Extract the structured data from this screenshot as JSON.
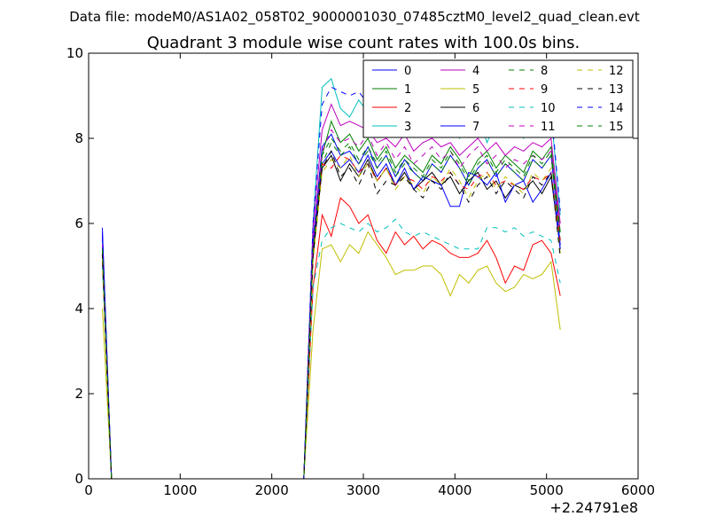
{
  "chart_data": {
    "type": "line",
    "header": "Data file: modeM0/AS1A02_058T02_9000001030_07485cztM0_level2_quad_clean.evt",
    "title": "Quadrant 3 module wise count rates with 100.0s bins.",
    "xlabel": "",
    "ylabel": "",
    "xlim": [
      0,
      6000
    ],
    "ylim": [
      0,
      10
    ],
    "x_ticks": [
      0,
      1000,
      2000,
      3000,
      4000,
      5000,
      6000
    ],
    "y_ticks": [
      0,
      2,
      4,
      6,
      8,
      10
    ],
    "x_offset_label": "+2.24791e8",
    "grid": false,
    "legend_position": "top-right",
    "legend_columns": 4,
    "x": [
      150,
      250,
      2350,
      2450,
      2550,
      2650,
      2750,
      2850,
      2950,
      3050,
      3150,
      3250,
      3350,
      3450,
      3550,
      3650,
      3750,
      3850,
      3950,
      4050,
      4150,
      4250,
      4350,
      4450,
      4550,
      4650,
      4750,
      4850,
      4950,
      5050,
      5150
    ],
    "series": [
      {
        "name": "0",
        "color": "#0000ff",
        "dash": "solid",
        "values": [
          5.9,
          0,
          0,
          5.6,
          7.8,
          8.1,
          7.6,
          7.7,
          7.4,
          7.8,
          7.3,
          7.6,
          7.1,
          7.5,
          7.2,
          7.0,
          7.4,
          7.2,
          7.6,
          7.3,
          6.9,
          7.3,
          7.5,
          7.1,
          7.4,
          7.2,
          7.0,
          7.5,
          7.3,
          7.6,
          5.5
        ]
      },
      {
        "name": "1",
        "color": "#008000",
        "dash": "solid",
        "values": [
          5.5,
          0,
          0,
          5.4,
          7.6,
          8.4,
          7.9,
          8.1,
          7.7,
          8.0,
          7.5,
          7.8,
          7.3,
          7.6,
          7.4,
          7.2,
          7.6,
          7.4,
          7.8,
          7.5,
          7.1,
          7.5,
          7.7,
          7.3,
          7.6,
          7.4,
          7.2,
          7.7,
          7.5,
          7.8,
          5.8
        ]
      },
      {
        "name": "2",
        "color": "#ff0000",
        "dash": "solid",
        "values": [
          5.2,
          0,
          0,
          4.5,
          6.2,
          5.7,
          6.6,
          6.4,
          6.0,
          6.2,
          5.6,
          5.3,
          5.8,
          5.5,
          5.7,
          5.4,
          5.6,
          5.5,
          5.3,
          5.2,
          5.2,
          5.3,
          5.6,
          5.2,
          4.6,
          5.0,
          4.9,
          5.5,
          5.6,
          5.3,
          4.3
        ]
      },
      {
        "name": "3",
        "color": "#00bfbf",
        "dash": "solid",
        "values": [
          5.6,
          0,
          0,
          6.0,
          9.2,
          9.4,
          8.7,
          8.5,
          8.9,
          8.6,
          8.2,
          8.8,
          8.3,
          8.6,
          8.1,
          8.4,
          8.7,
          8.2,
          8.5,
          8.0,
          8.3,
          8.6,
          7.9,
          8.4,
          8.2,
          8.5,
          8.0,
          8.4,
          8.3,
          8.6,
          6.2
        ]
      },
      {
        "name": "4",
        "color": "#bf00bf",
        "dash": "solid",
        "values": [
          5.7,
          0,
          0,
          5.9,
          8.2,
          8.8,
          8.3,
          8.4,
          8.3,
          8.2,
          7.9,
          8.0,
          7.8,
          8.1,
          7.7,
          7.9,
          8.0,
          7.8,
          7.9,
          7.6,
          7.8,
          8.0,
          7.7,
          7.9,
          7.6,
          7.8,
          7.7,
          7.9,
          7.8,
          8.0,
          6.0
        ]
      },
      {
        "name": "5",
        "color": "#bfbf00",
        "dash": "solid",
        "values": [
          4.0,
          0,
          0,
          3.5,
          5.4,
          5.5,
          5.1,
          5.5,
          5.3,
          5.8,
          5.5,
          5.2,
          4.8,
          4.9,
          4.9,
          5.0,
          5.0,
          4.8,
          4.3,
          4.8,
          4.6,
          4.9,
          5.0,
          4.6,
          4.4,
          4.5,
          4.8,
          4.7,
          4.8,
          5.1,
          3.5
        ]
      },
      {
        "name": "6",
        "color": "#000000",
        "dash": "solid",
        "values": [
          5.3,
          0,
          0,
          5.3,
          7.3,
          7.6,
          7.0,
          7.4,
          7.1,
          7.5,
          7.0,
          7.3,
          6.9,
          7.2,
          6.8,
          7.0,
          7.2,
          6.9,
          7.1,
          6.7,
          7.0,
          7.2,
          6.8,
          7.0,
          6.6,
          6.9,
          6.8,
          7.0,
          6.7,
          7.1,
          5.4
        ]
      },
      {
        "name": "7",
        "color": "#0000ff",
        "dash": "solid",
        "values": [
          5.8,
          0,
          0,
          5.5,
          7.4,
          7.7,
          7.3,
          7.5,
          7.2,
          7.6,
          7.1,
          7.4,
          6.9,
          7.3,
          6.8,
          7.1,
          7.0,
          6.9,
          6.4,
          6.4,
          7.2,
          7.1,
          6.9,
          7.2,
          6.5,
          6.9,
          7.0,
          6.5,
          6.8,
          7.2,
          5.4
        ]
      },
      {
        "name": "8",
        "color": "#008000",
        "dash": "dashed",
        "values": [
          5.4,
          0,
          0,
          5.3,
          7.4,
          7.9,
          7.6,
          7.8,
          7.4,
          7.7,
          7.3,
          7.6,
          7.1,
          7.4,
          7.2,
          7.0,
          7.4,
          7.2,
          7.6,
          7.3,
          6.9,
          7.3,
          7.5,
          7.1,
          7.4,
          7.2,
          7.0,
          7.5,
          7.3,
          7.6,
          5.6
        ]
      },
      {
        "name": "9",
        "color": "#ff0000",
        "dash": "dashed",
        "values": [
          5.1,
          0,
          0,
          5.2,
          7.4,
          7.3,
          7.6,
          7.5,
          7.2,
          7.4,
          7.0,
          7.3,
          6.9,
          7.1,
          7.0,
          6.8,
          7.1,
          7.0,
          7.2,
          6.9,
          6.8,
          7.1,
          7.2,
          6.9,
          7.0,
          6.9,
          6.8,
          7.1,
          7.0,
          7.2,
          5.6
        ]
      },
      {
        "name": "10",
        "color": "#00bfbf",
        "dash": "dashed",
        "values": [
          5.0,
          0,
          0,
          4.5,
          5.6,
          5.9,
          6.0,
          5.9,
          5.8,
          6.0,
          5.8,
          5.9,
          6.1,
          5.8,
          5.7,
          5.8,
          5.7,
          5.6,
          5.5,
          5.4,
          5.4,
          5.4,
          5.9,
          5.9,
          5.8,
          5.9,
          5.7,
          5.8,
          5.7,
          5.6,
          4.6
        ]
      },
      {
        "name": "11",
        "color": "#bf00bf",
        "dash": "dashed",
        "values": [
          5.5,
          0,
          0,
          5.6,
          7.7,
          8.2,
          7.9,
          8.0,
          7.8,
          8.1,
          7.6,
          7.9,
          7.5,
          7.8,
          7.4,
          7.6,
          7.8,
          7.5,
          7.7,
          7.3,
          7.6,
          7.8,
          7.4,
          7.6,
          7.3,
          7.5,
          7.4,
          7.6,
          7.5,
          7.7,
          5.8
        ]
      },
      {
        "name": "12",
        "color": "#bfbf00",
        "dash": "dashed",
        "values": [
          5.2,
          0,
          0,
          5.1,
          7.2,
          7.5,
          7.3,
          7.6,
          7.1,
          7.4,
          7.0,
          7.3,
          6.8,
          7.1,
          6.9,
          6.7,
          7.1,
          6.9,
          7.3,
          7.0,
          6.6,
          7.0,
          7.2,
          6.8,
          7.1,
          6.9,
          6.7,
          7.2,
          7.0,
          7.3,
          5.3
        ]
      },
      {
        "name": "13",
        "color": "#000000",
        "dash": "dashed",
        "values": [
          5.3,
          0,
          0,
          5.2,
          7.3,
          7.7,
          7.1,
          7.3,
          6.9,
          7.4,
          6.7,
          7.0,
          6.9,
          7.1,
          6.8,
          6.6,
          7.0,
          6.8,
          7.2,
          6.9,
          6.5,
          6.9,
          7.1,
          6.7,
          7.0,
          6.8,
          6.6,
          7.1,
          6.9,
          7.2,
          5.2
        ]
      },
      {
        "name": "14",
        "color": "#0000ff",
        "dash": "dashed",
        "values": [
          5.7,
          0,
          0,
          6.0,
          8.8,
          9.2,
          9.1,
          9.0,
          9.1,
          8.8,
          8.6,
          8.9,
          8.5,
          8.8,
          8.6,
          8.4,
          8.7,
          8.5,
          8.8,
          8.4,
          8.6,
          8.8,
          8.3,
          8.6,
          8.4,
          8.7,
          8.3,
          8.5,
          8.4,
          8.7,
          6.3
        ]
      },
      {
        "name": "15",
        "color": "#008000",
        "dash": "dashed",
        "values": [
          5.4,
          0,
          0,
          5.4,
          7.6,
          8.0,
          7.7,
          7.9,
          7.5,
          7.8,
          7.4,
          7.7,
          7.2,
          7.5,
          7.3,
          7.1,
          7.5,
          7.3,
          7.7,
          7.4,
          7.0,
          7.4,
          7.6,
          7.2,
          7.5,
          7.3,
          7.1,
          7.6,
          7.4,
          7.7,
          5.7
        ]
      }
    ]
  }
}
